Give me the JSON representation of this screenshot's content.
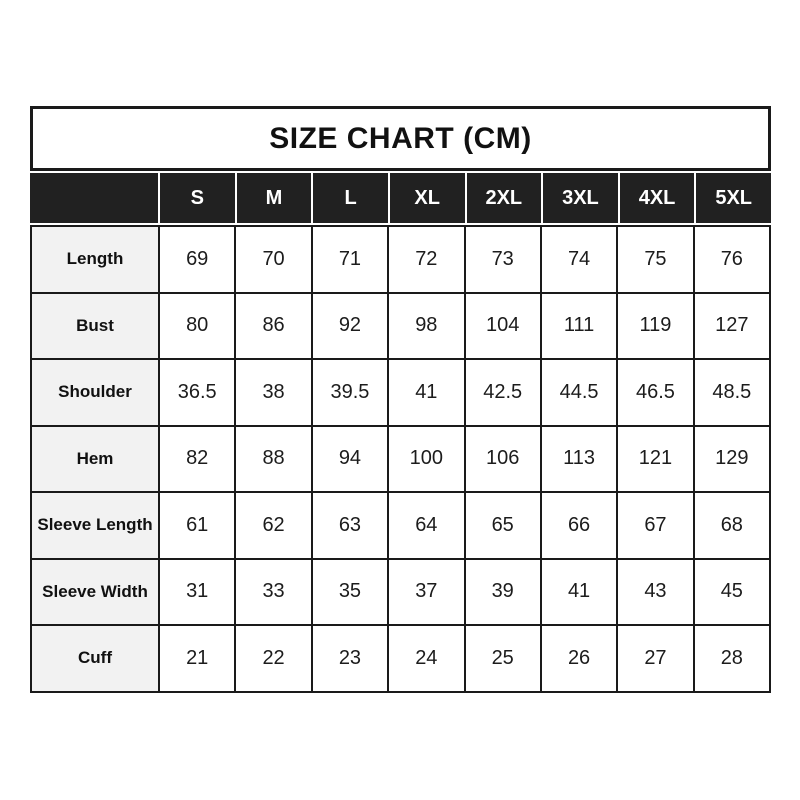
{
  "chart_data": {
    "type": "table",
    "title": "SIZE CHART (CM)",
    "unit": "cm",
    "columns": [
      "S",
      "M",
      "L",
      "XL",
      "2XL",
      "3XL",
      "4XL",
      "5XL"
    ],
    "rows": [
      {
        "label": "Length",
        "values": [
          69,
          70,
          71,
          72,
          73,
          74,
          75,
          76
        ]
      },
      {
        "label": "Bust",
        "values": [
          80,
          86,
          92,
          98,
          104,
          111,
          119,
          127
        ]
      },
      {
        "label": "Shoulder",
        "values": [
          36.5,
          38,
          39.5,
          41,
          42.5,
          44.5,
          46.5,
          48.5
        ]
      },
      {
        "label": "Hem",
        "values": [
          82,
          88,
          94,
          100,
          106,
          113,
          121,
          129
        ]
      },
      {
        "label": "Sleeve Length",
        "values": [
          61,
          62,
          63,
          64,
          65,
          66,
          67,
          68
        ]
      },
      {
        "label": "Sleeve Width",
        "values": [
          31,
          33,
          35,
          37,
          39,
          41,
          43,
          45
        ]
      },
      {
        "label": "Cuff",
        "values": [
          21,
          22,
          23,
          24,
          25,
          26,
          27,
          28
        ]
      }
    ]
  },
  "colors": {
    "header_bg": "#212121",
    "header_text": "#ffffff",
    "label_cell_bg": "#f2f2f2",
    "grid_line": "#1a1a1a",
    "value_text": "#1c1c1c",
    "title_text": "#111111",
    "background": "#ffffff"
  }
}
